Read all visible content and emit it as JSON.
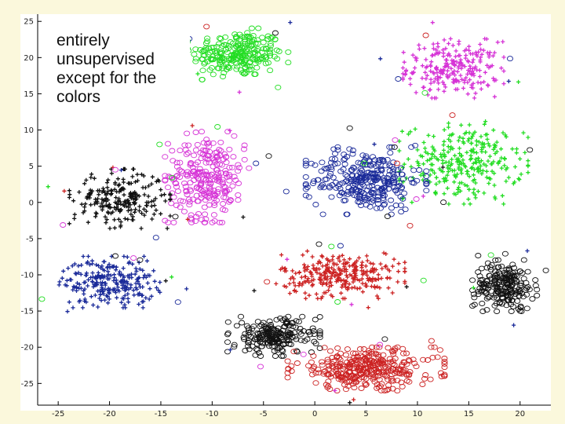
{
  "chart_data": {
    "type": "scatter",
    "title": "",
    "xlabel": "",
    "ylabel": "",
    "xlim": [
      -27,
      23
    ],
    "ylim": [
      -28,
      26
    ],
    "x_ticks": [
      "-25",
      "-20",
      "-15",
      "-10",
      "-5",
      "0",
      "5",
      "10",
      "15",
      "20"
    ],
    "x_tick_values": [
      -25,
      -20,
      -15,
      -10,
      -5,
      0,
      5,
      10,
      15,
      20
    ],
    "y_ticks": [
      "25",
      "20",
      "15",
      "10",
      "5",
      "0",
      "-5",
      "-10",
      "-15",
      "-20",
      "-25"
    ],
    "y_tick_values": [
      25,
      20,
      15,
      10,
      5,
      0,
      -5,
      -10,
      -15,
      -20,
      -25
    ],
    "annotation_lines": [
      "entirely",
      "unsupervised",
      "except for the",
      "colors"
    ],
    "clusters": [
      {
        "name": "green-circles-top",
        "color": "#22dd22",
        "marker": "circle",
        "cx": -7.5,
        "cy": 20.5,
        "sx": 3.6,
        "sy": 2.6,
        "n": 240
      },
      {
        "name": "magenta-plus-top-right",
        "color": "#d633d6",
        "marker": "plus",
        "cx": 13.5,
        "cy": 18.5,
        "sx": 3.6,
        "sy": 3.0,
        "n": 240
      },
      {
        "name": "green-plus-right",
        "color": "#22dd22",
        "marker": "plus",
        "cx": 14.5,
        "cy": 5.5,
        "sx": 4.6,
        "sy": 4.2,
        "n": 290
      },
      {
        "name": "navy-circles-center",
        "color": "#1a2a99",
        "marker": "circle",
        "cx": 5.0,
        "cy": 3.0,
        "sx": 4.3,
        "sy": 3.4,
        "n": 300
      },
      {
        "name": "magenta-circles-left",
        "color": "#d633d6",
        "marker": "circle",
        "cx": -10.5,
        "cy": 3.5,
        "sx": 3.0,
        "sy": 4.6,
        "n": 260
      },
      {
        "name": "black-plus-left",
        "color": "#111111",
        "marker": "plus",
        "cx": -19.0,
        "cy": 0.5,
        "sx": 3.6,
        "sy": 3.0,
        "n": 230
      },
      {
        "name": "blue-plus-left",
        "color": "#1a2a99",
        "marker": "plus",
        "cx": -20.0,
        "cy": -11.0,
        "sx": 3.6,
        "sy": 2.6,
        "n": 250
      },
      {
        "name": "red-plus-center",
        "color": "#cc2222",
        "marker": "plus",
        "cx": 2.5,
        "cy": -10.0,
        "sx": 4.6,
        "sy": 2.4,
        "n": 290
      },
      {
        "name": "black-circles-right",
        "color": "#111111",
        "marker": "circle",
        "cx": 18.5,
        "cy": -11.5,
        "sx": 2.3,
        "sy": 2.6,
        "n": 210
      },
      {
        "name": "black-circles-bottom",
        "color": "#111111",
        "marker": "circle",
        "cx": -4.0,
        "cy": -18.5,
        "sx": 3.3,
        "sy": 2.0,
        "n": 210
      },
      {
        "name": "red-circles-bottom",
        "color": "#cc2222",
        "marker": "circle",
        "cx": 5.0,
        "cy": -23.0,
        "sx": 5.6,
        "sy": 2.2,
        "n": 340
      }
    ],
    "stray_points": 90
  },
  "colors": {
    "background": "#fbf8dc",
    "plot_background": "#ffffff",
    "axis": "#000000"
  }
}
